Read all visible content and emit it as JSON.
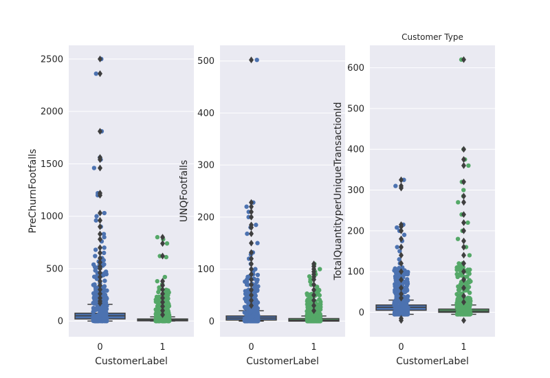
{
  "figure": {
    "title": "Customer Type",
    "colors": {
      "panel_bg": "#EAEAF2",
      "grid": "#FFFFFF",
      "box_fill_0": "#4C72B0",
      "box_fill_1": "#55A868",
      "box_line": "#3F3F3F",
      "points_0": "#4C72B0",
      "points_1": "#55A868"
    }
  },
  "chart_data": [
    {
      "type": "box+strip",
      "title": "",
      "xlabel": "CustomerLabel",
      "ylabel": "PreChurnFootfalls",
      "categories": [
        "0",
        "1"
      ],
      "yticks": [
        0,
        500,
        1000,
        1500,
        2000,
        2500
      ],
      "ylim": [
        -150,
        2630
      ],
      "boxes": [
        {
          "q1": 20,
          "median": 50,
          "q3": 75,
          "whisker_low": 0,
          "whisker_high": 160,
          "fliers": [
            2500,
            2360,
            1810,
            1560,
            1540,
            1460,
            1220,
            1200,
            1030,
            960,
            900,
            830,
            780,
            700,
            650,
            600,
            560,
            520,
            500,
            460,
            420,
            380,
            340,
            300,
            260,
            220,
            190,
            170
          ],
          "points": [
            2500,
            2360,
            1810,
            1560,
            1540,
            1460,
            1220,
            1200,
            1030,
            1000,
            960,
            900,
            830,
            800,
            760,
            700,
            680,
            650,
            620,
            600,
            580
          ]
        },
        {
          "q1": 2,
          "median": 10,
          "q3": 20,
          "whisker_low": 0,
          "whisker_high": 40,
          "fliers": [
            800,
            740,
            620,
            380,
            340,
            300,
            260,
            220,
            180,
            140,
            100,
            60
          ],
          "points": [
            800,
            780,
            740,
            620,
            610,
            420,
            380,
            350,
            320,
            300
          ]
        }
      ]
    },
    {
      "type": "box+strip",
      "title": "",
      "xlabel": "CustomerLabel",
      "ylabel": "UNQFootfalls",
      "categories": [
        "0",
        "1"
      ],
      "yticks": [
        0,
        100,
        200,
        300,
        400,
        500
      ],
      "ylim": [
        -30,
        530
      ],
      "boxes": [
        {
          "q1": 2,
          "median": 6,
          "q3": 10,
          "whisker_low": 0,
          "whisker_high": 20,
          "fliers": [
            502,
            228,
            220,
            210,
            200,
            185,
            180,
            168,
            150,
            132,
            120,
            110,
            100,
            90,
            80,
            70,
            60,
            50,
            40,
            30
          ],
          "points": [
            502,
            228,
            220,
            210,
            200,
            185,
            180,
            168,
            150,
            132,
            128,
            120,
            110,
            100,
            96,
            90
          ]
        },
        {
          "q1": 0,
          "median": 2,
          "q3": 5,
          "whisker_low": 0,
          "whisker_high": 10,
          "fliers": [
            110,
            105,
            100,
            95,
            90,
            85,
            80,
            70,
            60,
            50,
            40,
            30,
            20
          ],
          "points": [
            110,
            106,
            100,
            95,
            90,
            86,
            80,
            76,
            70,
            66,
            60
          ]
        }
      ]
    },
    {
      "type": "box+strip",
      "title": "Customer Type",
      "xlabel": "CustomerLabel",
      "ylabel": "TotalQuantityperUniqueTransactionId",
      "categories": [
        "0",
        "1"
      ],
      "yticks": [
        0,
        100,
        200,
        300,
        400,
        500,
        600
      ],
      "ylim": [
        -60,
        655
      ],
      "boxes": [
        {
          "q1": 5,
          "median": 12,
          "q3": 18,
          "whisker_low": -5,
          "whisker_high": 30,
          "fliers": [
            -15,
            -20,
            325,
            310,
            305,
            215,
            210,
            200,
            180,
            160,
            140,
            120,
            100,
            80,
            60,
            45,
            35
          ],
          "points": [
            325,
            310,
            215,
            208,
            200,
            190,
            175,
            160,
            150,
            130,
            120,
            110
          ]
        },
        {
          "q1": 0,
          "median": 3,
          "q3": 8,
          "whisker_low": -5,
          "whisker_high": 18,
          "fliers": [
            -20,
            620,
            400,
            375,
            360,
            320,
            285,
            270,
            240,
            220,
            200,
            175,
            160,
            140,
            120,
            100,
            80,
            60,
            40,
            25
          ],
          "points": [
            620,
            400,
            375,
            360,
            320,
            300,
            285,
            270,
            240,
            220,
            200,
            180,
            160,
            140,
            120
          ]
        }
      ]
    }
  ]
}
